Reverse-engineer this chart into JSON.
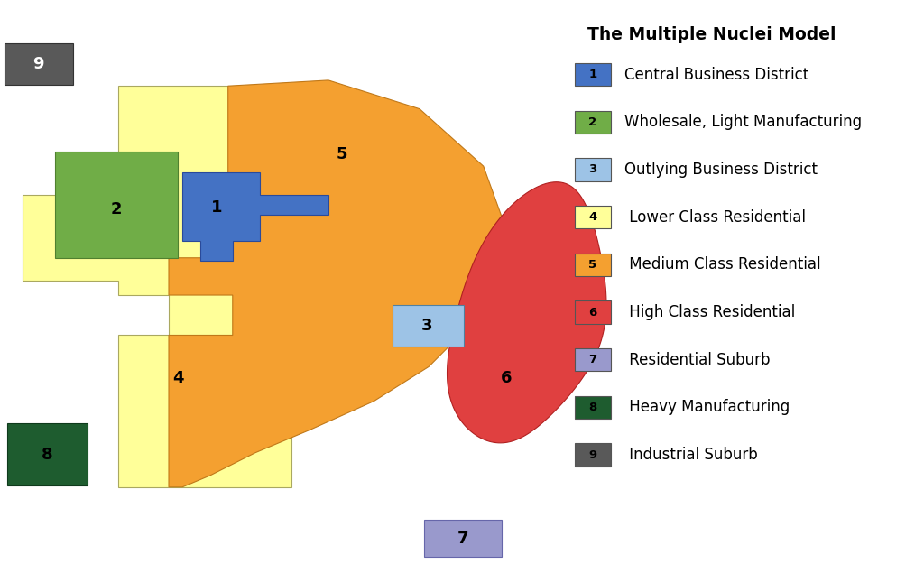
{
  "title": "The Multiple Nuclei Model",
  "background_color": "#ffffff",
  "legend_items": [
    {
      "num": "1",
      "label": "Central Business District",
      "color": "#4472C4"
    },
    {
      "num": "2",
      "label": "Wholesale, Light Manufacturing",
      "color": "#70AD47"
    },
    {
      "num": "3",
      "label": "Outlying Business District",
      "color": "#9DC3E6"
    },
    {
      "num": "4",
      "label": " Lower Class Residential",
      "color": "#FFFF99"
    },
    {
      "num": "5",
      "label": " Medium Class Residential",
      "color": "#F4A030"
    },
    {
      "num": "6",
      "label": " High Class Residential",
      "color": "#E04040"
    },
    {
      "num": "7",
      "label": " Residential Suburb",
      "color": "#9999CC"
    },
    {
      "num": "8",
      "label": " Heavy Manufacturing",
      "color": "#1E5C2F"
    },
    {
      "num": "9",
      "label": " Industrial Suburb",
      "color": "#595959"
    }
  ],
  "colors": {
    "1": "#4472C4",
    "2": "#70AD47",
    "3": "#9DC3E6",
    "4": "#FFFF99",
    "5": "#F4A030",
    "6": "#E04040",
    "7": "#9999CC",
    "8": "#1E5C2F",
    "9": "#595959"
  },
  "label_colors": {
    "1": "black",
    "2": "black",
    "3": "black",
    "4": "black",
    "5": "black",
    "6": "black",
    "7": "black",
    "8": "black",
    "9": "white"
  }
}
